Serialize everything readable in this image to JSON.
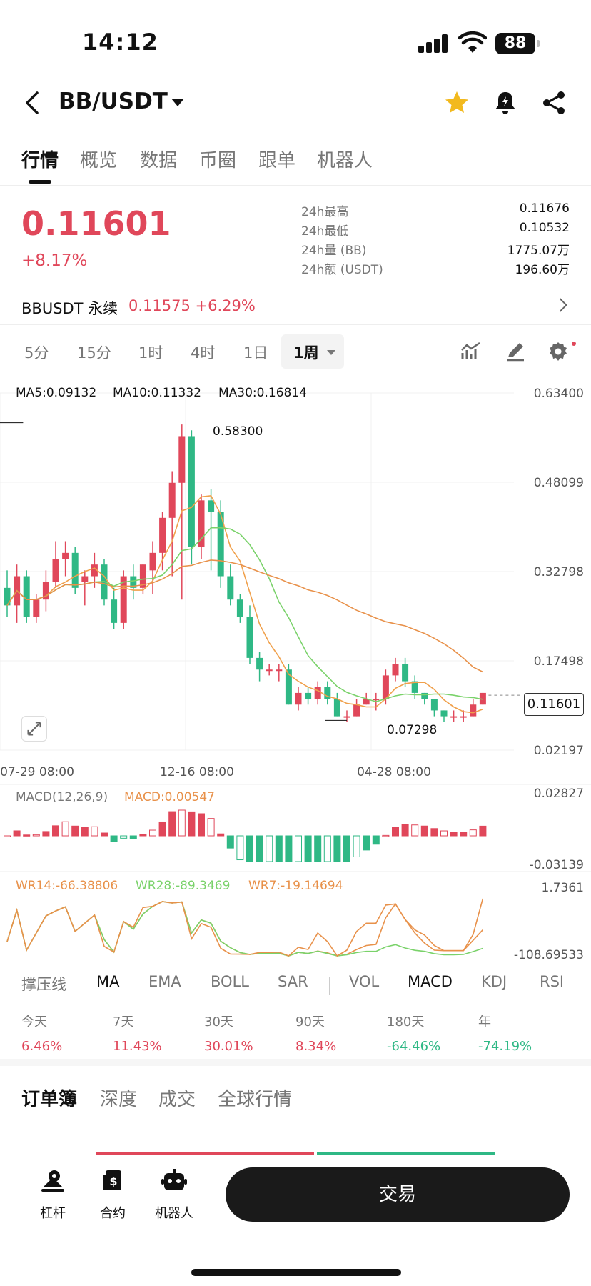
{
  "status_bar": {
    "time": "14:12",
    "battery": "88"
  },
  "header": {
    "pair": "BB/USDT"
  },
  "tabs": [
    "行情",
    "概览",
    "数据",
    "币圈",
    "跟单",
    "机器人"
  ],
  "price": {
    "last": "0.11601",
    "change": "+8.17%"
  },
  "stats": [
    {
      "label": "24h最高",
      "value": "0.11676"
    },
    {
      "label": "24h最低",
      "value": "0.10532"
    },
    {
      "label": "24h量 (BB)",
      "value": "1775.07万"
    },
    {
      "label": "24h额 (USDT)",
      "value": "196.60万"
    }
  ],
  "perpetual": {
    "name": "BBUSDT 永续",
    "price_change": "0.11575 +6.29%"
  },
  "intervals": [
    "5分",
    "15分",
    "1时",
    "4时",
    "1日",
    "1周"
  ],
  "chart": {
    "ma_legend": [
      {
        "text": "MA5:0.09132",
        "color": "#f0a04b"
      },
      {
        "text": "MA10:0.11332",
        "color": "#7ad26a"
      },
      {
        "text": "MA30:0.16814",
        "color": "#e8914a"
      }
    ],
    "y_labels": [
      "0.63400",
      "0.48099",
      "0.32798",
      "0.17498",
      "0.02197"
    ],
    "x_labels": [
      "07-29 08:00",
      "12-16 08:00",
      "04-28 08:00"
    ],
    "high_marker": "0.58300",
    "low_marker": "0.07298",
    "current_price": "0.11601",
    "macd_legend": [
      {
        "text": "MACD(12,26,9)",
        "color": "#777777"
      },
      {
        "text": "MACD:0.00547",
        "color": "#e8914a"
      }
    ],
    "macd_y": [
      "0.02827",
      "-0.03139"
    ],
    "wr_legend": [
      {
        "text": "WR14:-66.38806",
        "color": "#e8914a"
      },
      {
        "text": "WR28:-89.3469",
        "color": "#7ad26a"
      },
      {
        "text": "WR7:-19.14694",
        "color": "#e8914a"
      }
    ],
    "wr_y": [
      "1.7361",
      "-108.69533"
    ]
  },
  "chart_data": {
    "type": "candlestick",
    "y_range": [
      0.02197,
      0.634
    ],
    "high": 0.583,
    "low": 0.07298,
    "last": 0.11601,
    "candles": [
      [
        0.3,
        0.33,
        0.25,
        0.27
      ],
      [
        0.27,
        0.34,
        0.24,
        0.32
      ],
      [
        0.32,
        0.33,
        0.24,
        0.25
      ],
      [
        0.25,
        0.29,
        0.24,
        0.28
      ],
      [
        0.28,
        0.33,
        0.26,
        0.31
      ],
      [
        0.31,
        0.38,
        0.3,
        0.35
      ],
      [
        0.35,
        0.38,
        0.32,
        0.36
      ],
      [
        0.36,
        0.37,
        0.29,
        0.3
      ],
      [
        0.31,
        0.33,
        0.27,
        0.32
      ],
      [
        0.32,
        0.36,
        0.3,
        0.34
      ],
      [
        0.34,
        0.35,
        0.27,
        0.28
      ],
      [
        0.28,
        0.3,
        0.23,
        0.24
      ],
      [
        0.24,
        0.33,
        0.23,
        0.32
      ],
      [
        0.32,
        0.34,
        0.28,
        0.3
      ],
      [
        0.3,
        0.34,
        0.29,
        0.34
      ],
      [
        0.33,
        0.38,
        0.29,
        0.36
      ],
      [
        0.36,
        0.43,
        0.33,
        0.42
      ],
      [
        0.42,
        0.5,
        0.32,
        0.48
      ],
      [
        0.48,
        0.58,
        0.28,
        0.56
      ],
      [
        0.56,
        0.57,
        0.34,
        0.37
      ],
      [
        0.37,
        0.46,
        0.35,
        0.45
      ],
      [
        0.45,
        0.47,
        0.33,
        0.43
      ],
      [
        0.43,
        0.45,
        0.3,
        0.32
      ],
      [
        0.32,
        0.34,
        0.27,
        0.28
      ],
      [
        0.28,
        0.29,
        0.24,
        0.25
      ],
      [
        0.25,
        0.27,
        0.17,
        0.18
      ],
      [
        0.18,
        0.19,
        0.14,
        0.16
      ],
      [
        0.16,
        0.17,
        0.15,
        0.16
      ],
      [
        0.16,
        0.17,
        0.14,
        0.16
      ],
      [
        0.16,
        0.17,
        0.1,
        0.1
      ],
      [
        0.1,
        0.13,
        0.09,
        0.12
      ],
      [
        0.12,
        0.13,
        0.1,
        0.11
      ],
      [
        0.11,
        0.14,
        0.1,
        0.13
      ],
      [
        0.13,
        0.14,
        0.1,
        0.11
      ],
      [
        0.11,
        0.12,
        0.08,
        0.08
      ],
      [
        0.08,
        0.09,
        0.07,
        0.08
      ],
      [
        0.08,
        0.11,
        0.08,
        0.1
      ],
      [
        0.1,
        0.12,
        0.1,
        0.11
      ],
      [
        0.11,
        0.12,
        0.09,
        0.11
      ],
      [
        0.11,
        0.16,
        0.1,
        0.15
      ],
      [
        0.15,
        0.18,
        0.14,
        0.17
      ],
      [
        0.17,
        0.18,
        0.13,
        0.14
      ],
      [
        0.14,
        0.15,
        0.11,
        0.12
      ],
      [
        0.12,
        0.12,
        0.1,
        0.11
      ],
      [
        0.11,
        0.11,
        0.08,
        0.09
      ],
      [
        0.09,
        0.09,
        0.07,
        0.08
      ],
      [
        0.08,
        0.09,
        0.07,
        0.08
      ],
      [
        0.08,
        0.09,
        0.07,
        0.08
      ],
      [
        0.08,
        0.11,
        0.08,
        0.1
      ],
      [
        0.1,
        0.12,
        0.1,
        0.12
      ]
    ]
  },
  "indicators": [
    "撑压线",
    "MA",
    "EMA",
    "BOLL",
    "SAR",
    "VOL",
    "MACD",
    "KDJ",
    "RSI"
  ],
  "periods": [
    {
      "label": "今天",
      "value": "6.46%",
      "sign": "pos"
    },
    {
      "label": "7天",
      "value": "11.43%",
      "sign": "pos"
    },
    {
      "label": "30天",
      "value": "30.01%",
      "sign": "pos"
    },
    {
      "label": "90天",
      "value": "8.34%",
      "sign": "pos"
    },
    {
      "label": "180天",
      "value": "-64.46%",
      "sign": "neg"
    },
    {
      "label": "年",
      "value": "-74.19%",
      "sign": "neg"
    }
  ],
  "order_tabs": [
    "订单簿",
    "深度",
    "成交",
    "全球行情"
  ],
  "bottom_nav": [
    "杠杆",
    "合约",
    "机器人"
  ],
  "trade_button": "交易",
  "colors": {
    "up": "#e0475a",
    "down": "#2fb885"
  }
}
